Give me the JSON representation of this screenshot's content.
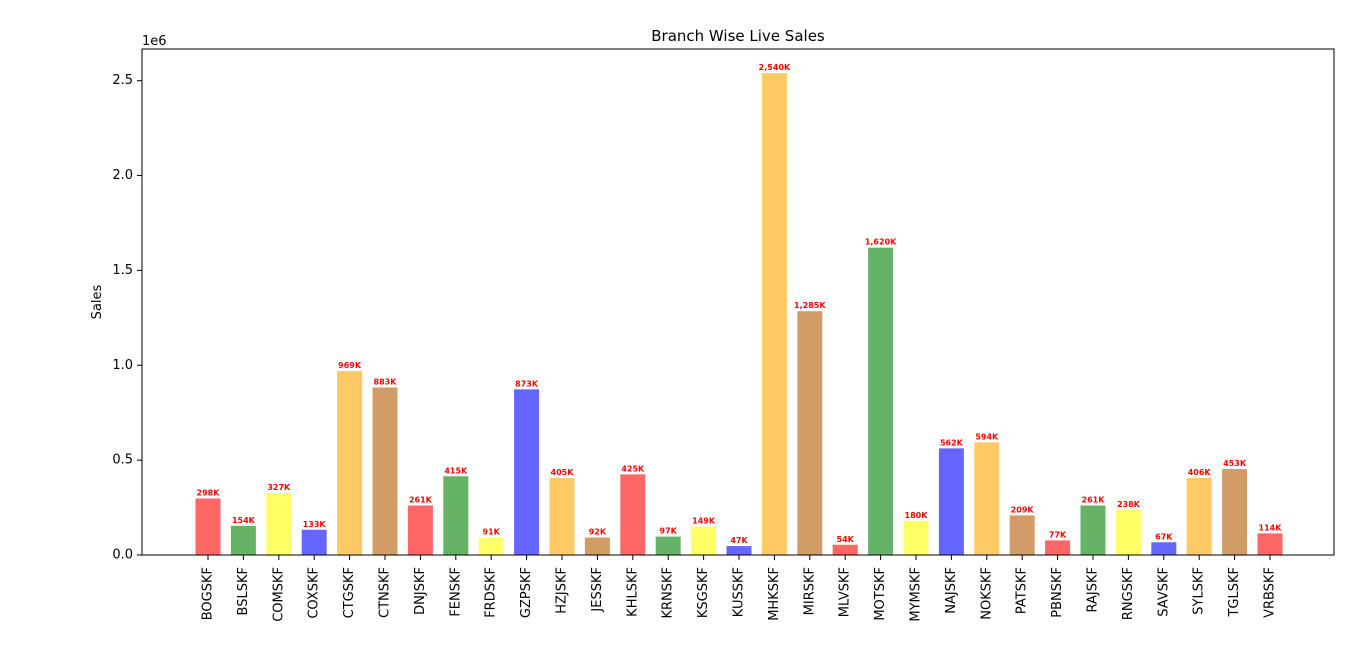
{
  "chart_data": {
    "type": "bar",
    "title": "Branch Wise Live Sales",
    "xlabel": "",
    "ylabel": "Sales",
    "offset_text": "1e6",
    "ylim": [
      0,
      2667000
    ],
    "yticks": [
      0,
      500000,
      1000000,
      1500000,
      2000000,
      2500000
    ],
    "ytick_labels": [
      "0.0",
      "0.5",
      "1.0",
      "1.5",
      "2.0",
      "2.5"
    ],
    "grid": false,
    "categories": [
      "BOGSKF",
      "BSLSKF",
      "COMSKF",
      "COXSKF",
      "CTGSKF",
      "CTNSKF",
      "DNJSKF",
      "FENSKF",
      "FRDSKF",
      "GZPSKF",
      "HZJSKF",
      "JESSKF",
      "KHLSKF",
      "KRNSKF",
      "KSGSKF",
      "KUSSKF",
      "MHKSKF",
      "MIRSKF",
      "MLVSKF",
      "MOTSKF",
      "MYMSKF",
      "NAJSKF",
      "NOKSKF",
      "PATSKF",
      "PBNSKF",
      "RAJSKF",
      "RNGSKF",
      "SAVSKF",
      "SYLSKF",
      "TGLSKF",
      "VRBSKF"
    ],
    "values": [
      298000,
      154000,
      327000,
      133000,
      969000,
      883000,
      261000,
      415000,
      91000,
      873000,
      405000,
      92000,
      425000,
      97000,
      149000,
      47000,
      2540000,
      1285000,
      54000,
      1620000,
      180000,
      562000,
      594000,
      209000,
      77000,
      261000,
      238000,
      67000,
      406000,
      453000,
      114000
    ],
    "data_labels": [
      "298K",
      "154K",
      "327K",
      "133K",
      "969K",
      "883K",
      "261K",
      "415K",
      "91K",
      "873K",
      "405K",
      "92K",
      "425K",
      "97K",
      "149K",
      "47K",
      "2,540K",
      "1,285K",
      "54K",
      "1,620K",
      "180K",
      "562K",
      "594K",
      "209K",
      "77K",
      "261K",
      "238K",
      "67K",
      "406K",
      "453K",
      "114K"
    ],
    "colors": [
      "#ff6666",
      "#66b266",
      "#ffff66",
      "#6666ff",
      "#ffc966",
      "#d19c66",
      "#ff6666",
      "#66b266",
      "#ffff66",
      "#6666ff",
      "#ffc966",
      "#d19c66",
      "#ff6666",
      "#66b266",
      "#ffff66",
      "#6666ff",
      "#ffc966",
      "#d19c66",
      "#ff6666",
      "#66b266",
      "#ffff66",
      "#6666ff",
      "#ffc966",
      "#d19c66",
      "#ff6666",
      "#66b266",
      "#ffff66",
      "#6666ff",
      "#ffc966",
      "#d19c66",
      "#ff6666"
    ],
    "label_color": "#ff0000"
  }
}
